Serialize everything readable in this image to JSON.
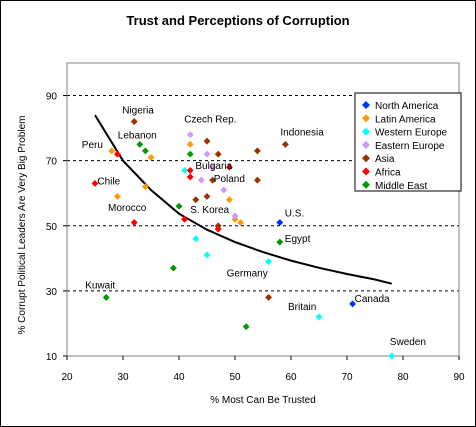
{
  "chart_data": {
    "type": "scatter",
    "title": "Trust and Perceptions of Corruption",
    "xlabel": "% Most Can Be Trusted",
    "ylabel": "% Corrupt Political Leaders Are Very Big Problem",
    "xlim": [
      20,
      90
    ],
    "ylim": [
      10,
      100
    ],
    "x_ticks": [
      "20",
      "30",
      "40",
      "50",
      "60",
      "70",
      "80",
      "90"
    ],
    "y_ticks": [
      "10",
      "30",
      "50",
      "70",
      "90"
    ],
    "grid": "horizontal dashed at 30, 50, 70, 90",
    "legend_position": "right",
    "series": [
      {
        "name": "North America",
        "color": "#0033ff",
        "points": [
          [
            58,
            51
          ],
          [
            71,
            26
          ]
        ]
      },
      {
        "name": "Latin America",
        "color": "#ff9900",
        "points": [
          [
            28,
            73
          ],
          [
            29,
            59
          ],
          [
            34,
            62
          ],
          [
            35,
            71
          ],
          [
            42,
            75
          ],
          [
            49,
            58
          ],
          [
            50,
            52
          ],
          [
            51,
            51
          ]
        ]
      },
      {
        "name": "Western Europe",
        "color": "#00ffff",
        "points": [
          [
            41,
            67
          ],
          [
            43,
            46
          ],
          [
            45,
            41
          ],
          [
            56,
            39
          ],
          [
            65,
            22
          ],
          [
            78,
            10
          ]
        ]
      },
      {
        "name": "Eastern Europe",
        "color": "#cc99ff",
        "points": [
          [
            42,
            78
          ],
          [
            44,
            64
          ],
          [
            45,
            72
          ],
          [
            46,
            68
          ],
          [
            48,
            61
          ],
          [
            50,
            53
          ]
        ]
      },
      {
        "name": "Asia",
        "color": "#993300",
        "points": [
          [
            32,
            82
          ],
          [
            43,
            58
          ],
          [
            45,
            76
          ],
          [
            45,
            59
          ],
          [
            46,
            64
          ],
          [
            47,
            72
          ],
          [
            47,
            50
          ],
          [
            54,
            73
          ],
          [
            54,
            64
          ],
          [
            56,
            28
          ],
          [
            59,
            75
          ]
        ]
      },
      {
        "name": "Africa",
        "color": "#ff0000",
        "points": [
          [
            25,
            63
          ],
          [
            29,
            72
          ],
          [
            32,
            51
          ],
          [
            41,
            52
          ],
          [
            42,
            65
          ],
          [
            42,
            67
          ],
          [
            47,
            49
          ],
          [
            49,
            68
          ]
        ]
      },
      {
        "name": "Middle East",
        "color": "#009900",
        "points": [
          [
            27,
            28
          ],
          [
            33,
            75
          ],
          [
            34,
            73
          ],
          [
            39,
            37
          ],
          [
            40,
            56
          ],
          [
            42,
            72
          ],
          [
            52,
            19
          ],
          [
            58,
            45
          ]
        ]
      }
    ],
    "trendline": {
      "x": [
        25,
        30,
        35,
        40,
        45,
        50,
        55,
        60,
        65,
        70,
        75,
        78
      ],
      "y": [
        84,
        70,
        61,
        53.7,
        48.8,
        45,
        41.9,
        39.3,
        37.1,
        35.2,
        33.5,
        32.2
      ]
    },
    "annotations": [
      {
        "text": "Nigeria",
        "x": 32,
        "y": 82
      },
      {
        "text": "Czech Rep.",
        "x": 42,
        "y": 78
      },
      {
        "text": "Lebanon",
        "x": 33,
        "y": 75
      },
      {
        "text": "Peru",
        "x": 28,
        "y": 73
      },
      {
        "text": "Indonesia",
        "x": 59,
        "y": 75
      },
      {
        "text": "Bulgaria",
        "x": 44,
        "y": 64
      },
      {
        "text": "Poland",
        "x": 48,
        "y": 61
      },
      {
        "text": "Chile",
        "x": 29,
        "y": 59
      },
      {
        "text": "S. Korea",
        "x": 47,
        "y": 50
      },
      {
        "text": "Morocco",
        "x": 40,
        "y": 56
      },
      {
        "text": "U.S.",
        "x": 58,
        "y": 51
      },
      {
        "text": "Egypt",
        "x": 58,
        "y": 45
      },
      {
        "text": "Germany",
        "x": 56,
        "y": 39
      },
      {
        "text": "Kuwait",
        "x": 27,
        "y": 28
      },
      {
        "text": "Canada",
        "x": 71,
        "y": 26
      },
      {
        "text": "Britain",
        "x": 65,
        "y": 22
      },
      {
        "text": "Sweden",
        "x": 78,
        "y": 10
      }
    ]
  }
}
